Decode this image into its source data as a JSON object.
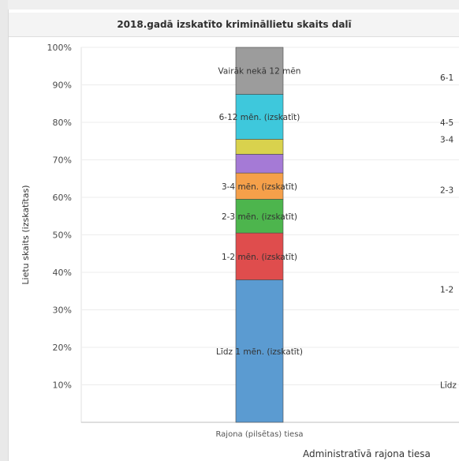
{
  "chart_data": {
    "type": "bar",
    "stacked": true,
    "title": "2018.gadā izskatīto krimināllietu skaits dalī",
    "ylabel": "Lietu skaits (izskatītas)",
    "xlabel": "Administratīvā rajona tiesa",
    "ylim": [
      0,
      100
    ],
    "y_ticks": [
      "10%",
      "20%",
      "30%",
      "40%",
      "50%",
      "60%",
      "70%",
      "80%",
      "90%",
      "100%"
    ],
    "y_tick_values": [
      10,
      20,
      30,
      40,
      50,
      60,
      70,
      80,
      90,
      100
    ],
    "categories": [
      "Rajona (pilsētas) tiesa"
    ],
    "grid": true,
    "series": [
      {
        "name": "Līdz 1 mēn. (izskatīt)",
        "values": [
          38
        ],
        "color": "#5b9bd1"
      },
      {
        "name": "1-2 mēn. (izskatīt)",
        "values": [
          12.5
        ],
        "color": "#df4d4d"
      },
      {
        "name": "2-3 mēn. (izskatīt)",
        "values": [
          9
        ],
        "color": "#4db54d"
      },
      {
        "name": "3-4 mēn. (izskatīt)",
        "values": [
          7
        ],
        "color": "#f5a04a"
      },
      {
        "name": "",
        "values": [
          5
        ],
        "color": "#a57ad6"
      },
      {
        "name": "",
        "values": [
          4
        ],
        "color": "#d9d24d"
      },
      {
        "name": "6-12 mēn. (izskatīt)",
        "values": [
          12
        ],
        "color": "#3ec8dc"
      },
      {
        "name": "Vairāk nekā 12 mēn",
        "values": [
          12.5
        ],
        "color": "#9c9c9c"
      }
    ],
    "right_labels": [
      "6-1",
      "4-5",
      "3-4",
      "2-3",
      "1-2",
      "Līdz"
    ],
    "right_label_values": [
      92,
      80,
      75.5,
      62,
      35.5,
      10
    ]
  }
}
